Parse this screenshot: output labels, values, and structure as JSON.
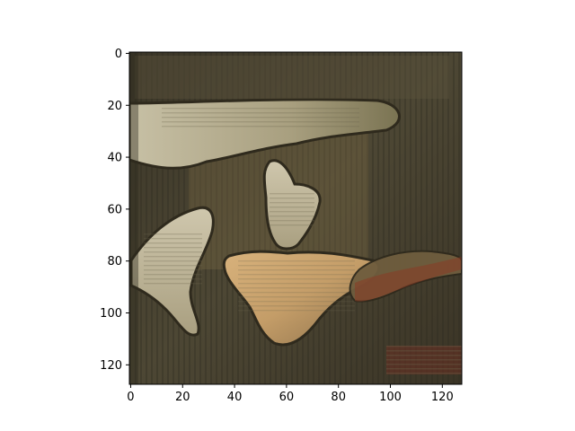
{
  "figure": {
    "description_role": "matplotlib imshow output of a generated image",
    "x_axis": {
      "ticks": [
        0,
        20,
        40,
        60,
        80,
        100,
        120
      ],
      "range": [
        -0.5,
        127.5
      ]
    },
    "y_axis": {
      "ticks": [
        0,
        20,
        40,
        60,
        80,
        100,
        120
      ],
      "range": [
        -0.5,
        127.5
      ],
      "inverted": true
    },
    "colors": {
      "background": "#4a4535",
      "dark": "#3a3527",
      "light_shape": "#bdb398",
      "warm_shape": "#c9a36f",
      "edge": "#2f2a1d",
      "red_accent": "#8a3a25"
    }
  },
  "chart_data": {
    "type": "heatmap",
    "title": "",
    "xlabel": "",
    "ylabel": "",
    "xlim": [
      -0.5,
      127.5
    ],
    "ylim": [
      127.5,
      -0.5
    ],
    "xticks": [
      0,
      20,
      40,
      60,
      80,
      100,
      120
    ],
    "yticks": [
      0,
      20,
      40,
      60,
      80,
      100,
      120
    ],
    "grid": false
  }
}
